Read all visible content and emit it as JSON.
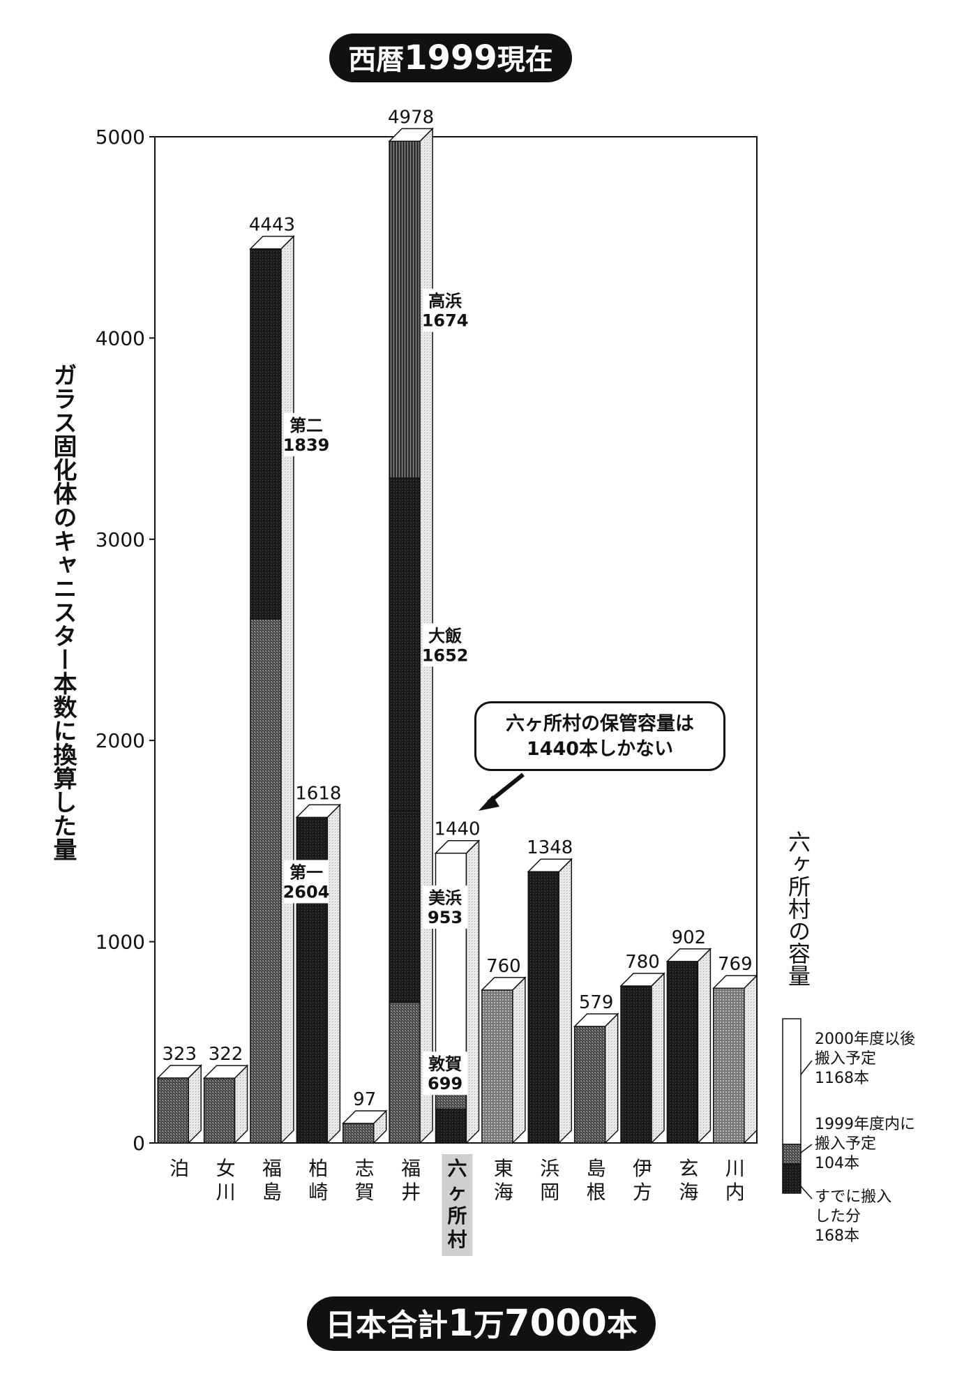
{
  "title": {
    "prefix": "西暦",
    "year": "1999",
    "suffix": "現在"
  },
  "total": {
    "prefix": "日本合計",
    "num1": "1",
    "mid": "万",
    "num2": "7000",
    "suffix": "本"
  },
  "callout": {
    "line1": "六ヶ所村の保管容量は",
    "line2": "1440本しかない"
  },
  "legend": {
    "title": "六ヶ所村の容量",
    "future": {
      "line1": "2000年度以後",
      "line2": "搬入予定",
      "line3": "1168本"
    },
    "planned": {
      "line1": "1999年度内に",
      "line2": "搬入予定",
      "line3": "104本"
    },
    "done": {
      "line1": "すでに搬入",
      "line2": "した分",
      "line3": "168本"
    }
  },
  "colors": {
    "ink": "#111111",
    "dark": "#2a2a2a",
    "mid": "#555555",
    "light": "#8a8a8a",
    "white": "#ffffff"
  },
  "chart_data": {
    "type": "bar",
    "ylabel": "ガラス固化体のキャニスター本数に換算した量",
    "ylim": [
      0,
      5000
    ],
    "yticks": [
      0,
      1000,
      2000,
      3000,
      4000,
      5000
    ],
    "grid": false,
    "categories": [
      "泊",
      "女川",
      "福島",
      "柏崎",
      "志賀",
      "福井",
      "六ヶ所村",
      "東海",
      "浜岡",
      "島根",
      "伊方",
      "玄海",
      "川内"
    ],
    "values": [
      323,
      322,
      4443,
      1618,
      97,
      4978,
      1440,
      760,
      1348,
      579,
      780,
      902,
      769
    ],
    "stacks": {
      "福島": [
        {
          "name": "第一",
          "value": 2604
        },
        {
          "name": "第二",
          "value": 1839
        }
      ],
      "福井": [
        {
          "name": "敦賀",
          "value": 699
        },
        {
          "name": "美浜",
          "value": 953
        },
        {
          "name": "大飯",
          "value": 1652
        },
        {
          "name": "高浜",
          "value": 1674
        }
      ],
      "六ヶ所村": [
        {
          "name": "すでに搬入した分",
          "value": 168
        },
        {
          "name": "1999年度内に搬入予定",
          "value": 104
        },
        {
          "name": "2000年度以後搬入予定",
          "value": 1168
        }
      ]
    },
    "legend_position": "right"
  }
}
